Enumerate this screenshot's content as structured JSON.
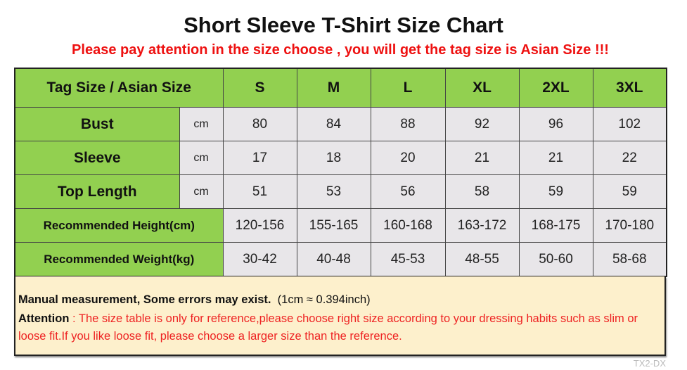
{
  "title": "Short Sleeve T-Shirt Size Chart",
  "subtitle": "Please pay attention in the size choose , you will get the tag size is Asian Size !!!",
  "header": {
    "label": "Tag Size / Asian Size",
    "sizes": [
      "S",
      "M",
      "L",
      "XL",
      "2XL",
      "3XL"
    ]
  },
  "rows": [
    {
      "label": "Bust",
      "unit": "cm",
      "values": [
        "80",
        "84",
        "88",
        "92",
        "96",
        "102"
      ]
    },
    {
      "label": "Sleeve",
      "unit": "cm",
      "values": [
        "17",
        "18",
        "20",
        "21",
        "21",
        "22"
      ]
    },
    {
      "label": "Top Length",
      "unit": "cm",
      "values": [
        "51",
        "53",
        "56",
        "58",
        "59",
        "59"
      ]
    },
    {
      "label": "Recommended Height(cm)",
      "values": [
        "120-156",
        "155-165",
        "160-168",
        "163-172",
        "168-175",
        "170-180"
      ]
    },
    {
      "label": "Recommended Weight(kg)",
      "values": [
        "30-42",
        "40-48",
        "45-53",
        "48-55",
        "50-60",
        "58-68"
      ]
    }
  ],
  "note": {
    "line1_bold": "Manual measurement, Some errors may exist.",
    "line1_rest": "(1cm ≈ 0.394inch)",
    "attention_label": "Attention",
    "attention_text": " : The size table is only for reference,please choose right size according to your dressing habits such as slim or loose fit.If you like loose fit, please choose a larger size than the reference."
  },
  "watermark": "TX2-DX",
  "colors": {
    "header_green": "#92d050",
    "cell_gray": "#e8e6e9",
    "note_bg": "#fdf0cc",
    "warning_red": "#ee1111"
  }
}
